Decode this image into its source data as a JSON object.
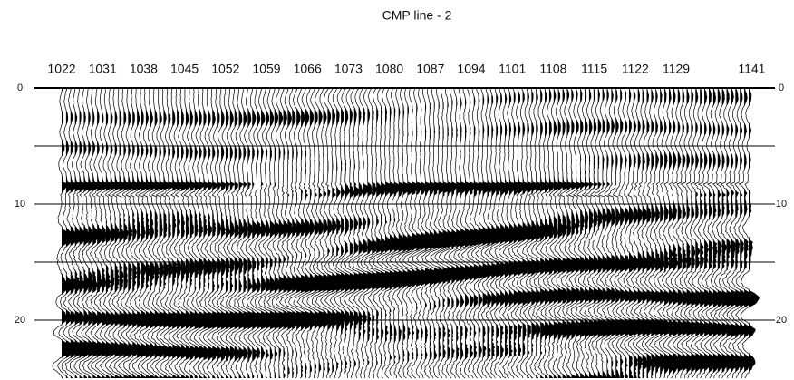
{
  "chart_data": {
    "type": "seismic",
    "title": "CMP line - 2",
    "categories": [
      "1022",
      "1031",
      "1038",
      "1045",
      "1052",
      "1059",
      "1066",
      "1073",
      "1080",
      "1087",
      "1094",
      "1101",
      "1108",
      "1115",
      "1122",
      "1129",
      null,
      "1141"
    ],
    "ylim": [
      0,
      25
    ],
    "yticks": [
      0,
      10,
      20
    ],
    "ygrid": [
      0,
      5,
      10,
      15,
      20
    ],
    "grid": true,
    "color": "#000000"
  }
}
